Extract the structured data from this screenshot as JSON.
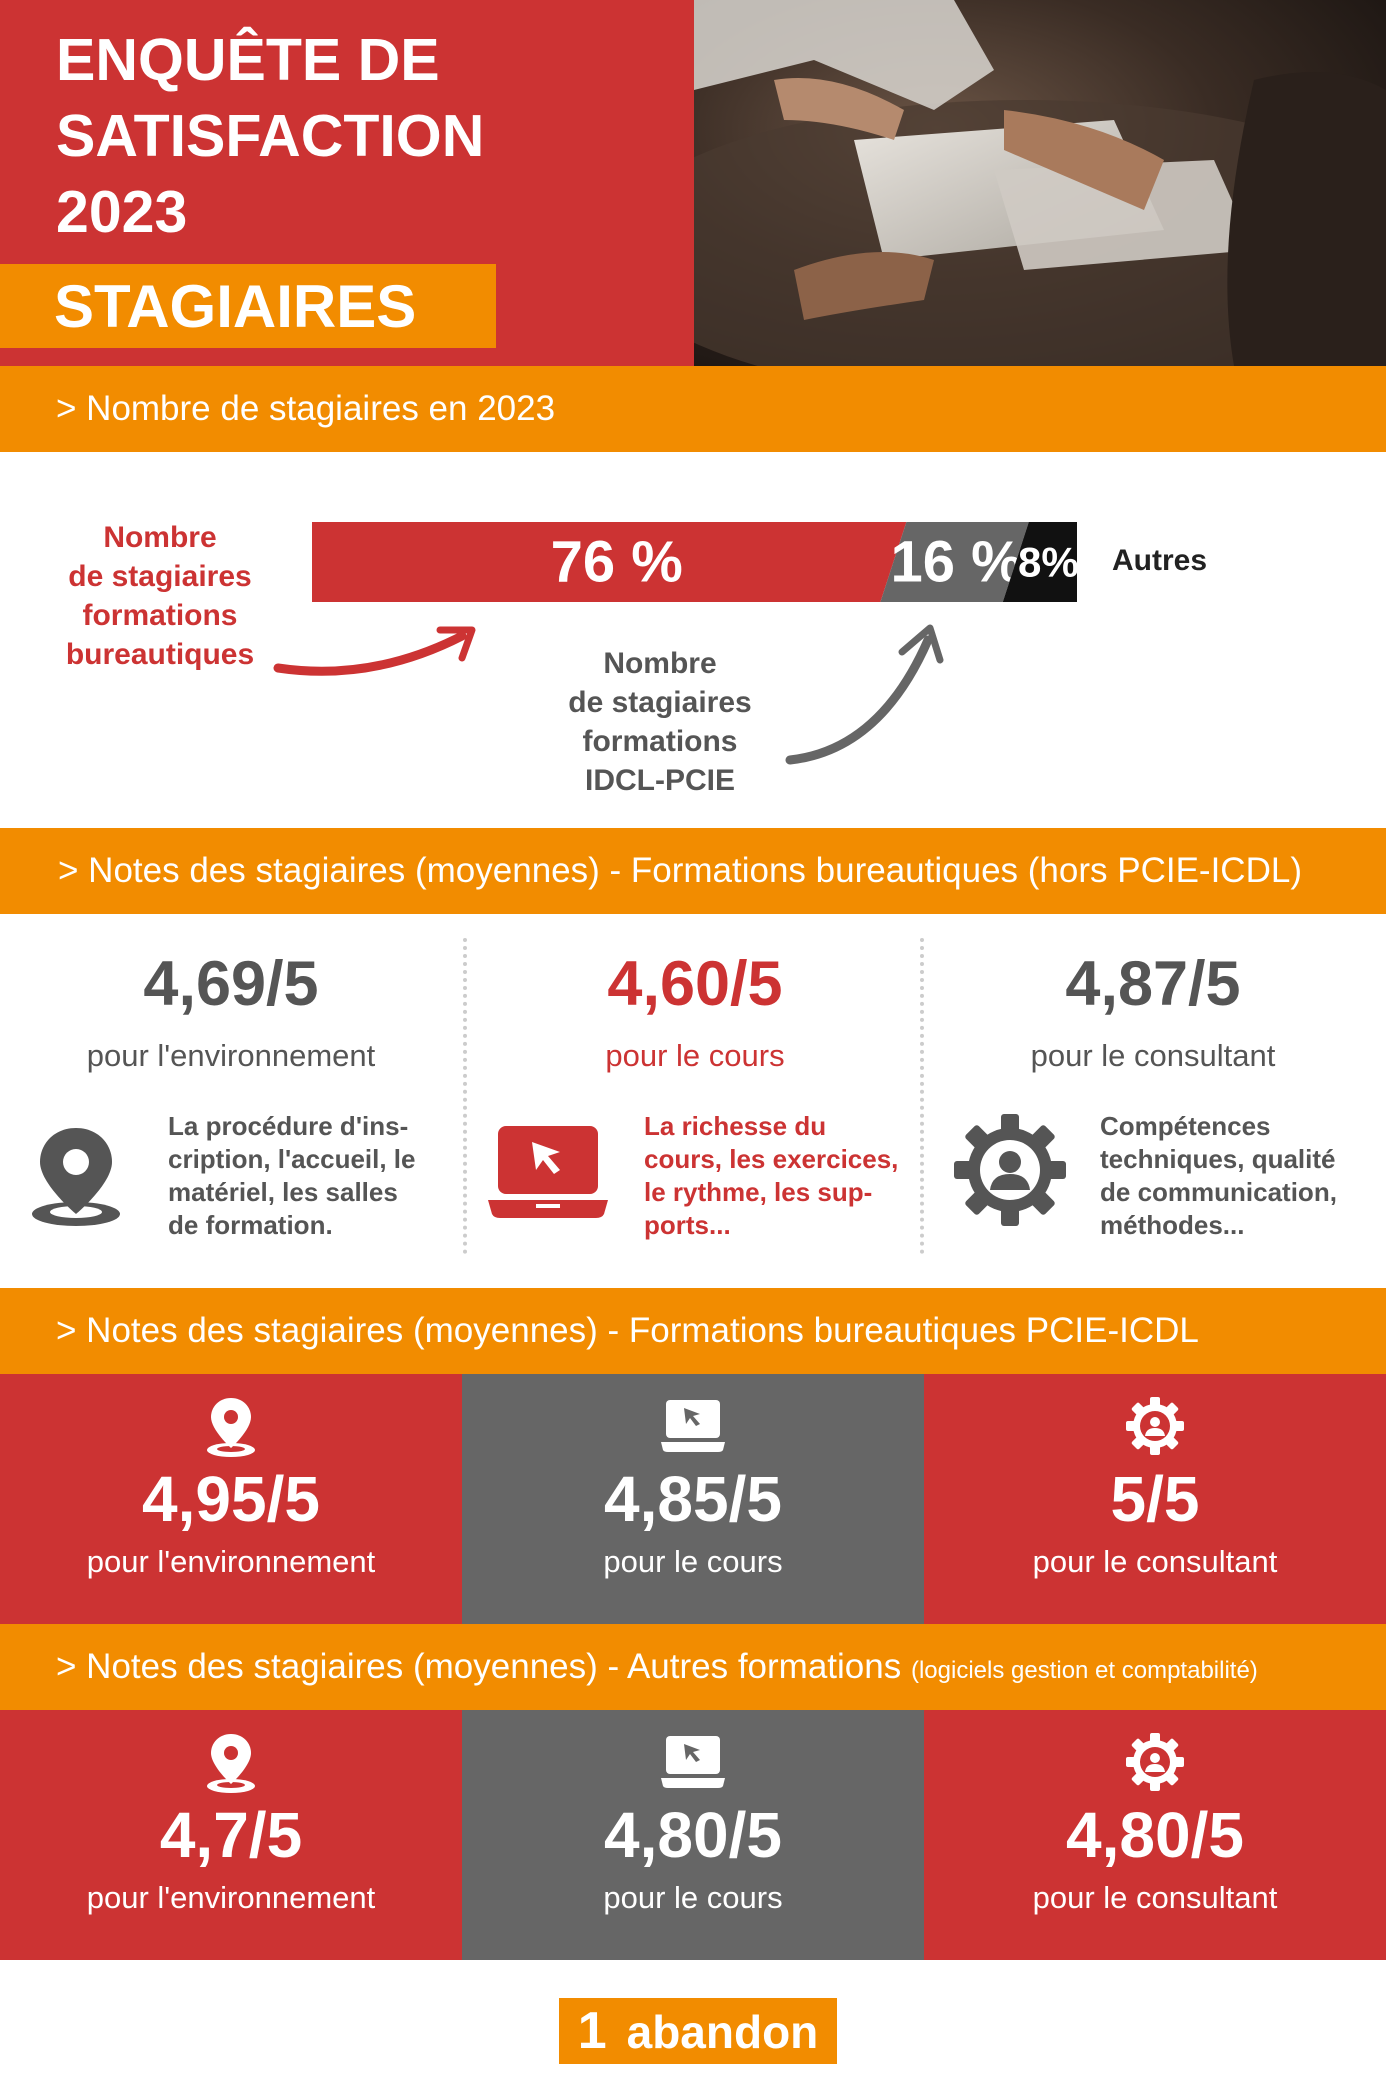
{
  "header": {
    "title_lines": [
      "ENQUÊTE DE",
      "SATISFACTION",
      "2023"
    ],
    "subtitle": "STAGIAIRES"
  },
  "section_count": {
    "heading": "> Nombre de stagiaires en 2023",
    "bureautique_label": [
      "Nombre",
      "de stagiaires",
      "formations",
      "bureautiques"
    ],
    "pcie_label": [
      "Nombre",
      "de stagiaires",
      "formations",
      "IDCL-PCIE"
    ],
    "others_label": "Autres",
    "segments": [
      {
        "label": "76 %",
        "value": 76,
        "color": "#cc3333"
      },
      {
        "label": "16 %",
        "value": 16,
        "color": "#666666"
      },
      {
        "label": "8%",
        "value": 8,
        "color": "#111111"
      }
    ]
  },
  "section_notes_1": {
    "heading": "> Notes des stagiaires (moyennes) - Formations bureautiques (hors PCIE-ICDL)",
    "items": [
      {
        "score": "4,69/5",
        "label": "pour l'environnement",
        "icon": "location-pin-icon",
        "desc": [
          "La procédure d'ins-",
          "cription, l'accueil, le",
          "matériel, les salles",
          "de formation."
        ]
      },
      {
        "score": "4,60/5",
        "label": "pour le cours",
        "icon": "laptop-cursor-icon",
        "desc": [
          "La richesse du",
          "cours, les exercices,",
          "le rythme, les sup-",
          "ports..."
        ]
      },
      {
        "score": "4,87/5",
        "label": "pour le consultant",
        "icon": "gear-person-icon",
        "desc": [
          "Compétences",
          "techniques, qualité",
          "de communication,",
          "méthodes..."
        ]
      }
    ]
  },
  "section_notes_2": {
    "heading": "> Notes des stagiaires (moyennes) - Formations bureautiques PCIE-ICDL",
    "items": [
      {
        "score": "4,95/5",
        "label": "pour l'environnement",
        "icon": "location-pin-icon"
      },
      {
        "score": "4,85/5",
        "label": "pour le cours",
        "icon": "laptop-cursor-icon"
      },
      {
        "score": "5/5",
        "label": "pour le consultant",
        "icon": "gear-person-icon"
      }
    ]
  },
  "section_notes_3": {
    "heading": "> Notes des stagiaires (moyennes) - Autres formations",
    "heading_small": "(logiciels gestion et comptabilité)",
    "items": [
      {
        "score": "4,7/5",
        "label": "pour l'environnement",
        "icon": "location-pin-icon"
      },
      {
        "score": "4,80/5",
        "label": "pour le cours",
        "icon": "laptop-cursor-icon"
      },
      {
        "score": "4,80/5",
        "label": "pour le consultant",
        "icon": "gear-person-icon"
      }
    ]
  },
  "abandon": {
    "number": "1",
    "label": "abandon"
  },
  "colors": {
    "red": "#cc3333",
    "orange": "#f28c00",
    "grey": "#666666",
    "dark": "#111111"
  }
}
